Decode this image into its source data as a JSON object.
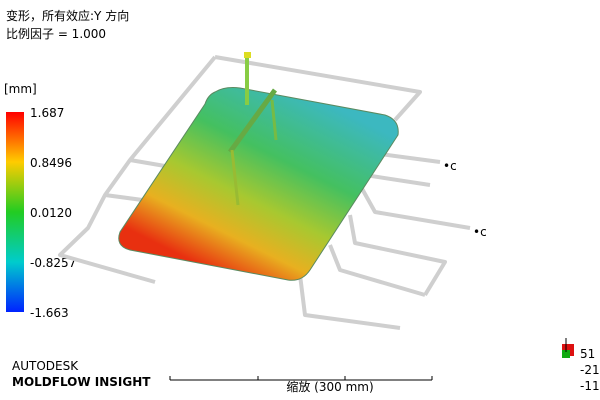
{
  "header": {
    "title": "变形，所有效应:Y 方向",
    "scale_factor": "比例因子 = 1.000"
  },
  "legend": {
    "unit": "[mm]",
    "labels": [
      "1.687",
      "0.8496",
      "0.0120",
      "-0.8257",
      "-1.663"
    ]
  },
  "branding": {
    "company": "AUTODESK",
    "product": "MOLDFLOW INSIGHT"
  },
  "scale_bar": {
    "label": "缩放 (300 mm)"
  },
  "triad": {
    "labels": [
      "51",
      "-21",
      "-11"
    ]
  }
}
